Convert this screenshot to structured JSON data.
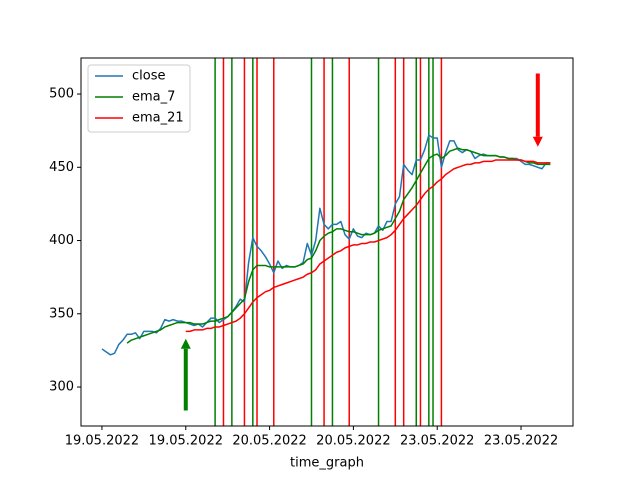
{
  "chart_data": {
    "type": "line",
    "xlabel": "time_graph",
    "x": [
      0,
      1,
      2,
      3,
      4,
      5,
      6,
      7,
      8,
      9,
      10,
      11,
      12,
      13,
      14,
      15,
      16,
      17,
      18,
      19,
      20,
      21,
      22,
      23,
      24,
      25,
      26,
      27,
      28,
      29,
      30,
      31,
      32,
      33,
      34,
      35,
      36,
      37,
      38,
      39,
      40,
      41,
      42,
      43,
      44,
      45,
      46,
      47,
      48,
      49,
      50,
      51,
      52,
      53,
      54,
      55,
      56,
      57,
      58,
      59,
      60,
      61,
      62,
      63,
      64,
      65,
      66,
      67,
      68,
      69,
      70,
      71,
      72,
      73,
      74,
      75,
      76,
      77,
      78,
      79,
      80,
      81,
      82,
      83,
      84,
      85,
      86,
      87,
      88,
      89,
      90,
      91,
      92,
      93,
      94,
      95,
      96,
      97,
      98,
      99,
      100,
      101,
      102,
      103,
      104,
      105,
      106,
      107
    ],
    "series": [
      {
        "name": "close",
        "color": "#1f77b4",
        "values": [
          326,
          324,
          322,
          323,
          329,
          332,
          336,
          336,
          337,
          333,
          338,
          338,
          338,
          337,
          340,
          346,
          345,
          346,
          345,
          345,
          344,
          343,
          342,
          343,
          341,
          344,
          347,
          347,
          344,
          346,
          348,
          351,
          355,
          360,
          358,
          385,
          402,
          396,
          393,
          389,
          384,
          378,
          386,
          381,
          383,
          382,
          382,
          383,
          385,
          398,
          390,
          400,
          422,
          411,
          408,
          411,
          411,
          413,
          404,
          401,
          408,
          403,
          402,
          405,
          404,
          405,
          410,
          407,
          413,
          413,
          425,
          430,
          452,
          448,
          445,
          455,
          455,
          462,
          472,
          470,
          470,
          450,
          460,
          468,
          468,
          462,
          460,
          462,
          461,
          456,
          458,
          459,
          458,
          458,
          458,
          457,
          457,
          456,
          456,
          456,
          454,
          452,
          452,
          451,
          450,
          449,
          453,
          453
        ]
      },
      {
        "name": "ema_7",
        "color": "#008000",
        "values": [
          null,
          null,
          null,
          null,
          null,
          null,
          330,
          332,
          333,
          334,
          335,
          336,
          337,
          338,
          339,
          341,
          342,
          343,
          344,
          344,
          344,
          344,
          343,
          343,
          343,
          344,
          345,
          345,
          346,
          347,
          348,
          351,
          354,
          357,
          360,
          372,
          380,
          383,
          383,
          383,
          382,
          382,
          382,
          382,
          382,
          382,
          382,
          383,
          384,
          387,
          388,
          393,
          400,
          403,
          405,
          406,
          408,
          408,
          407,
          406,
          406,
          405,
          404,
          404,
          404,
          405,
          407,
          408,
          409,
          410,
          415,
          420,
          428,
          432,
          436,
          441,
          446,
          451,
          456,
          458,
          459,
          456,
          458,
          461,
          462,
          463,
          462,
          462,
          461,
          460,
          459,
          458,
          458,
          458,
          458,
          457,
          457,
          456,
          456,
          455,
          455,
          454,
          453,
          453,
          452,
          452,
          452,
          452
        ]
      },
      {
        "name": "ema_21",
        "color": "#ff0000",
        "values": [
          null,
          null,
          null,
          null,
          null,
          null,
          null,
          null,
          null,
          null,
          null,
          null,
          null,
          null,
          null,
          null,
          null,
          null,
          null,
          null,
          338,
          338,
          339,
          339,
          339,
          340,
          340,
          341,
          341,
          342,
          343,
          344,
          345,
          347,
          350,
          354,
          358,
          361,
          363,
          365,
          366,
          368,
          369,
          370,
          371,
          372,
          373,
          374,
          375,
          377,
          378,
          380,
          384,
          386,
          388,
          390,
          392,
          393,
          395,
          396,
          397,
          397,
          398,
          398,
          399,
          399,
          400,
          401,
          402,
          404,
          407,
          411,
          415,
          418,
          421,
          424,
          428,
          432,
          435,
          437,
          440,
          442,
          445,
          447,
          449,
          450,
          451,
          452,
          452,
          453,
          453,
          454,
          454,
          454,
          455,
          455,
          455,
          455,
          455,
          455,
          455,
          454,
          454,
          454,
          453,
          453,
          453,
          453
        ]
      }
    ],
    "vlines": [
      {
        "x": 27,
        "color": "#008000"
      },
      {
        "x": 29,
        "color": "#ff0000"
      },
      {
        "x": 31,
        "color": "#008000"
      },
      {
        "x": 34,
        "color": "#ff0000"
      },
      {
        "x": 36,
        "color": "#008000"
      },
      {
        "x": 37,
        "color": "#ff0000"
      },
      {
        "x": 41,
        "color": "#ff0000"
      },
      {
        "x": 50,
        "color": "#008000"
      },
      {
        "x": 53,
        "color": "#ff0000"
      },
      {
        "x": 55,
        "color": "#008000"
      },
      {
        "x": 59,
        "color": "#ff0000"
      },
      {
        "x": 66,
        "color": "#008000"
      },
      {
        "x": 70,
        "color": "#ff0000"
      },
      {
        "x": 72,
        "color": "#ff0000"
      },
      {
        "x": 75,
        "color": "#008000"
      },
      {
        "x": 76,
        "color": "#ff0000"
      },
      {
        "x": 78,
        "color": "#008000"
      },
      {
        "x": 79,
        "color": "#008000"
      },
      {
        "x": 81,
        "color": "#ff0000"
      }
    ],
    "arrows": [
      {
        "x": 20,
        "y_start": 284,
        "y_end": 333,
        "color": "#008000"
      },
      {
        "x": 104,
        "y_start": 514,
        "y_end": 464,
        "color": "#ff0000"
      }
    ],
    "xlim": [
      -5,
      112.4
    ],
    "ylim": [
      273.4,
      524.6
    ],
    "xticks": [
      {
        "value": 0,
        "label": "19.05.2022"
      },
      {
        "value": 20,
        "label": "19.05.2022"
      },
      {
        "value": 40,
        "label": "20.05.2022"
      },
      {
        "value": 60,
        "label": "20.05.2022"
      },
      {
        "value": 80,
        "label": "23.05.2022"
      },
      {
        "value": 100,
        "label": "23.05.2022"
      }
    ],
    "yticks": [
      300,
      350,
      400,
      450,
      500
    ],
    "legend": "upper left"
  }
}
